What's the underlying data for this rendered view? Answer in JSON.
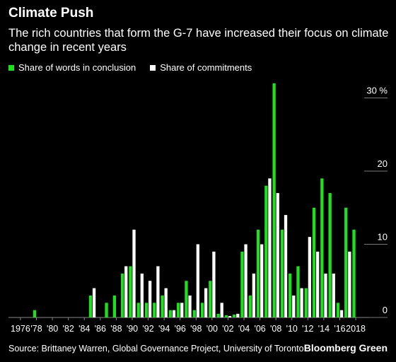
{
  "title": "Climate Push",
  "subtitle": "The rich countries that form the G-7 have increased their focus on climate change in recent years",
  "source": "Source: Brittaney Warren, Global Governance Project, University of Toronto",
  "brand": "Bloomberg Green",
  "colors": {
    "green": "#1ee01e",
    "white": "#ffffff",
    "background": "#000000",
    "axis": "#888888"
  },
  "chart_data": {
    "type": "bar",
    "categories": [
      "1975",
      "1976",
      "1977",
      "1978",
      "1979",
      "1980",
      "1981",
      "1982",
      "1983",
      "1984",
      "1985",
      "1986",
      "1987",
      "1988",
      "1989",
      "1990",
      "1991",
      "1992",
      "1993",
      "1994",
      "1995",
      "1996",
      "1997",
      "1998",
      "1999",
      "2000",
      "2001",
      "2002",
      "2003",
      "2004",
      "2005",
      "2006",
      "2007",
      "2008",
      "2009",
      "2010",
      "2011",
      "2012",
      "2013",
      "2014",
      "2015",
      "2016",
      "2017",
      "2018",
      "2019"
    ],
    "tick_labels": [
      "1976",
      "'78",
      "'80",
      "'82",
      "'84",
      "'86",
      "'88",
      "'90",
      "'92",
      "'94",
      "'96",
      "'98",
      "'00",
      "'02",
      "'04",
      "'06",
      "'08",
      "'10",
      "'12",
      "'14",
      "'16",
      "2018"
    ],
    "series": [
      {
        "name": "Share of words in conclusion",
        "color": "#1ee01e",
        "values": [
          0,
          0,
          0,
          1,
          0,
          0,
          0,
          0,
          0,
          0,
          3,
          0,
          2,
          3,
          6,
          7,
          2,
          2,
          2,
          3,
          1,
          2,
          5,
          1,
          2,
          5,
          0.5,
          0.3,
          0.4,
          9,
          3,
          12,
          18,
          32,
          12,
          6,
          7,
          4,
          15,
          19,
          17,
          2,
          15,
          12,
          null
        ]
      },
      {
        "name": "Share of commitments",
        "color": "#ffffff",
        "values": [
          0,
          0,
          0,
          0,
          0,
          0,
          0,
          0,
          0,
          0,
          4,
          0,
          0,
          0,
          7,
          12,
          6,
          5,
          7,
          4,
          1,
          2,
          3,
          10,
          4,
          9,
          2,
          0.2,
          0.5,
          10,
          6,
          10,
          19,
          17,
          14,
          3,
          4,
          11,
          9,
          6,
          6,
          1,
          9,
          null,
          null
        ]
      }
    ],
    "y_tick_labels": [
      "0",
      "10",
      "20",
      "30 %"
    ],
    "y_ticks": [
      0,
      10,
      20,
      30
    ],
    "ylim": [
      0,
      34
    ],
    "legend_position": "top-left",
    "grid": false,
    "y_axis_side": "right"
  }
}
